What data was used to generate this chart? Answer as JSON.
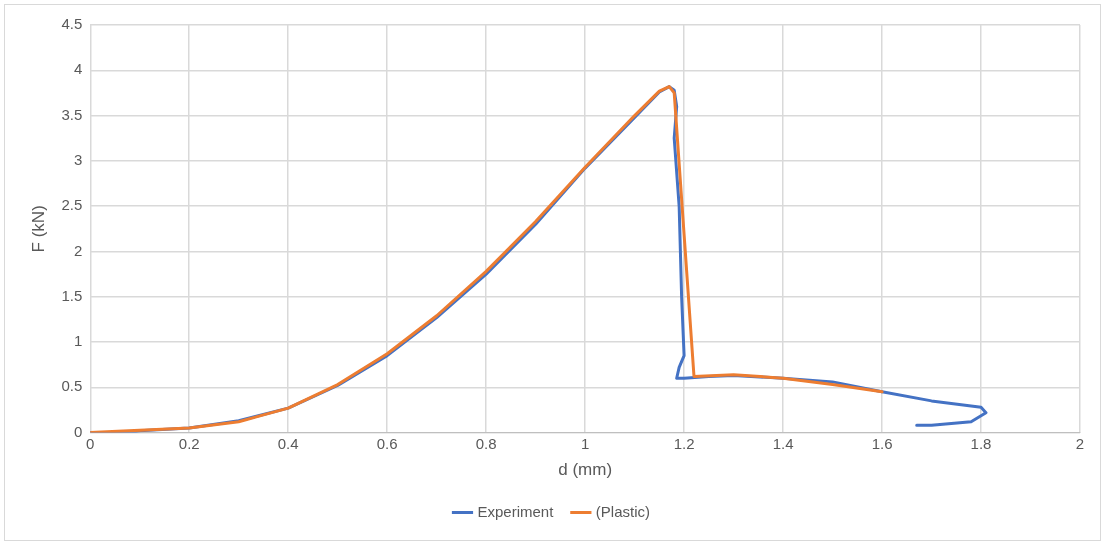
{
  "chart_data": {
    "type": "line",
    "xlabel": "d (mm)",
    "ylabel": "F (kN)",
    "xlim": [
      0,
      2
    ],
    "xticks": [
      0,
      0.2,
      0.4,
      0.6,
      0.8,
      1,
      1.2,
      1.4,
      1.6,
      1.8,
      2
    ],
    "ylim": [
      0,
      4.5
    ],
    "yticks": [
      0,
      0.5,
      1,
      1.5,
      2,
      2.5,
      3,
      3.5,
      4,
      4.5
    ],
    "grid": true,
    "legend": "bottom",
    "marker": "none",
    "line_style": "solid",
    "series": [
      {
        "name": "Experiment",
        "color": "#4472c4",
        "x": [
          0,
          0.08,
          0.1,
          0.2,
          0.3,
          0.4,
          0.5,
          0.6,
          0.7,
          0.8,
          0.9,
          1,
          1.1,
          1.15,
          1.17,
          1.18,
          1.185,
          1.18,
          1.19,
          1.195,
          1.2,
          1.19,
          1.185,
          1.2,
          1.25,
          1.3,
          1.4,
          1.5,
          1.6,
          1.7,
          1.8,
          1.81,
          1.78,
          1.7,
          1.67
        ],
        "values": [
          0,
          0,
          0.02,
          0.05,
          0.13,
          0.27,
          0.52,
          0.85,
          1.27,
          1.75,
          2.3,
          2.92,
          3.48,
          3.76,
          3.82,
          3.78,
          3.6,
          3.25,
          2.5,
          1.5,
          0.85,
          0.72,
          0.6,
          0.6,
          0.62,
          0.63,
          0.6,
          0.56,
          0.45,
          0.35,
          0.28,
          0.22,
          0.12,
          0.08,
          0.08
        ]
      },
      {
        "name": "(Plastic)",
        "color": "#ed7d31",
        "x": [
          0,
          0.2,
          0.3,
          0.4,
          0.5,
          0.6,
          0.7,
          0.8,
          0.9,
          1,
          1.1,
          1.15,
          1.17,
          1.18,
          1.22,
          1.3,
          1.4,
          1.5,
          1.6
        ],
        "values": [
          0,
          0.05,
          0.12,
          0.27,
          0.53,
          0.87,
          1.29,
          1.78,
          2.33,
          2.93,
          3.5,
          3.77,
          3.82,
          3.75,
          0.62,
          0.64,
          0.6,
          0.53,
          0.45
        ]
      }
    ]
  }
}
